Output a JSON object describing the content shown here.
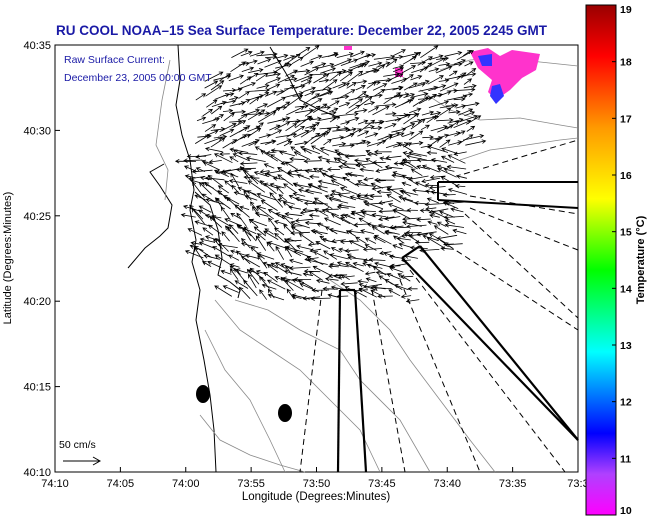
{
  "chart_data": {
    "type": "map",
    "title": "RU COOL   NOAA–15  Sea Surface Temperature:  December 22, 2005 2245 GMT",
    "subtitle_line1": "Raw Surface Current:",
    "subtitle_line2": "December 23, 2005 00:00 GMT",
    "xlabel": "Longitude (Degrees:Minutes)",
    "ylabel": "Latitude (Degrees:Minutes)",
    "x_ticks": [
      "74:10",
      "74:05",
      "74:00",
      "73:55",
      "73:50",
      "73:45",
      "73:40",
      "73:35",
      "73:3"
    ],
    "y_ticks": [
      "40:35",
      "40:30",
      "40:25",
      "40:20",
      "40:15",
      "40:10"
    ],
    "xlim": [
      -74.1667,
      -73.5
    ],
    "ylim": [
      40.1667,
      40.5833
    ],
    "scale_label": "50 cm/s",
    "colorbar": {
      "label": "Temperature (°C)",
      "min": 10,
      "max": 19,
      "ticks": [
        "19",
        "18",
        "17",
        "16",
        "15",
        "14",
        "13",
        "12",
        "11",
        "10"
      ]
    },
    "sst_patches_color": [
      "#ff33cc",
      "#3333ff"
    ],
    "legend_colors": [
      "#ff00ff",
      "#0000ff",
      "#00ffff",
      "#00ff00",
      "#ffff00",
      "#ff9900",
      "#ff0000",
      "#990000"
    ]
  }
}
